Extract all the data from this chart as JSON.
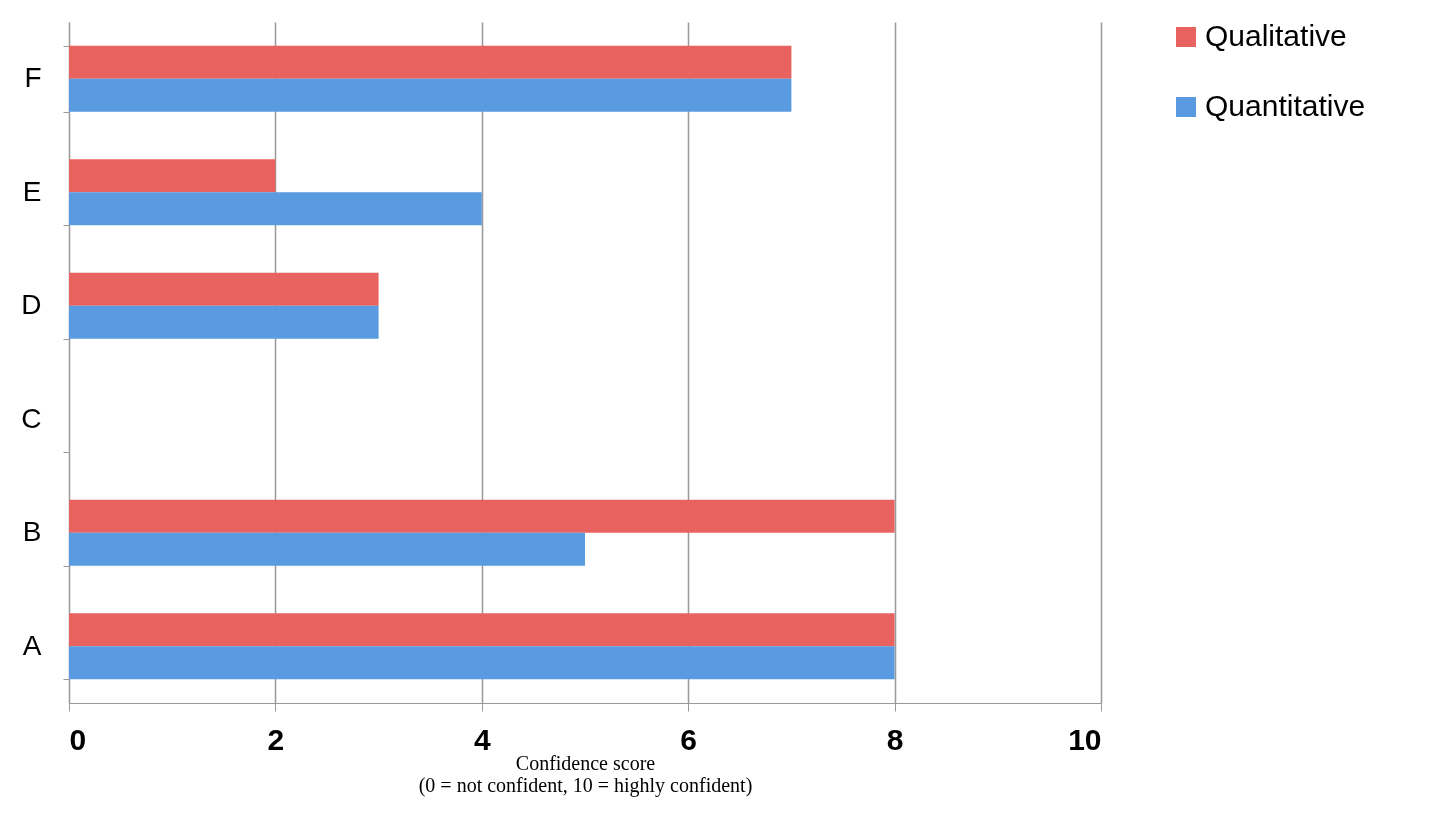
{
  "chart_data": {
    "type": "bar",
    "orientation": "horizontal",
    "categories": [
      "F",
      "E",
      "D",
      "C",
      "B",
      "A"
    ],
    "series": [
      {
        "name": "Qualitative",
        "color": "#e8625f",
        "values": [
          7,
          2,
          3,
          0,
          8,
          8
        ]
      },
      {
        "name": "Quantitative",
        "color": "#5a9ae0",
        "values": [
          7,
          4,
          3,
          0,
          5,
          8
        ]
      }
    ],
    "xlabel": "Confidence score\n(0 = not confident,   10 = highly confident)",
    "xlim": [
      0,
      10
    ],
    "xticks": [
      0,
      2,
      4,
      6,
      8,
      10
    ],
    "grid": "x",
    "legend": "right"
  }
}
